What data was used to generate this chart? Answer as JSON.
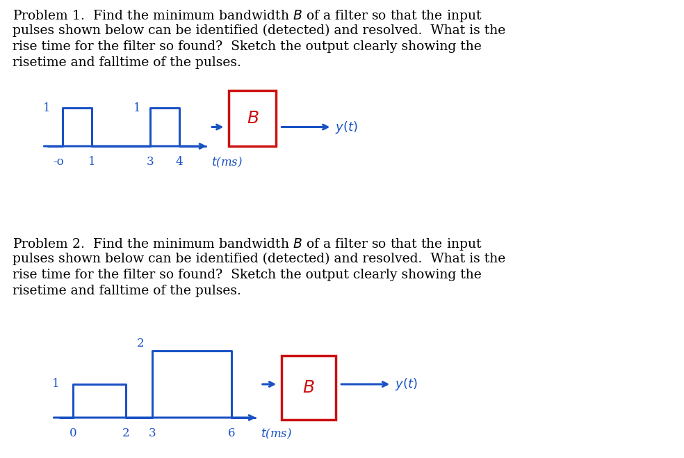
{
  "bg_color": "#ffffff",
  "text_color": "#000000",
  "blue_color": "#1a52c4",
  "red_color": "#cc1111",
  "font_size_text": 13.5,
  "font_size_label": 12,
  "lw": 2.2,
  "p1_text_lines": [
    "Problem 1.  Find the minimum bandwidth $B$ of a filter so that the input",
    "pulses shown below can be identified (detected) and resolved.  What is the",
    "rise time for the filter so found?  Sketch the output clearly showing the",
    "risetime and falltime of the pulses."
  ],
  "p2_text_lines": [
    "Problem 2.  Find the minimum bandwidth $B$ of a filter so that the input",
    "pulses shown below can be identified (detected) and resolved.  What is the",
    "rise time for the filter so found?  Sketch the output clearly showing the",
    "risetime and falltime of the pulses."
  ],
  "p1_sig_x": [
    -0.5,
    0,
    0,
    1,
    1,
    3,
    3,
    4,
    4,
    4.9
  ],
  "p1_sig_y": [
    0,
    0,
    1,
    1,
    0,
    0,
    1,
    1,
    0,
    0
  ],
  "p2_sig_x": [
    -0.5,
    0,
    0,
    2,
    2,
    3,
    3,
    6,
    6,
    6.9
  ],
  "p2_sig_y": [
    0,
    0,
    1,
    1,
    0,
    0,
    2,
    2,
    0,
    0
  ]
}
